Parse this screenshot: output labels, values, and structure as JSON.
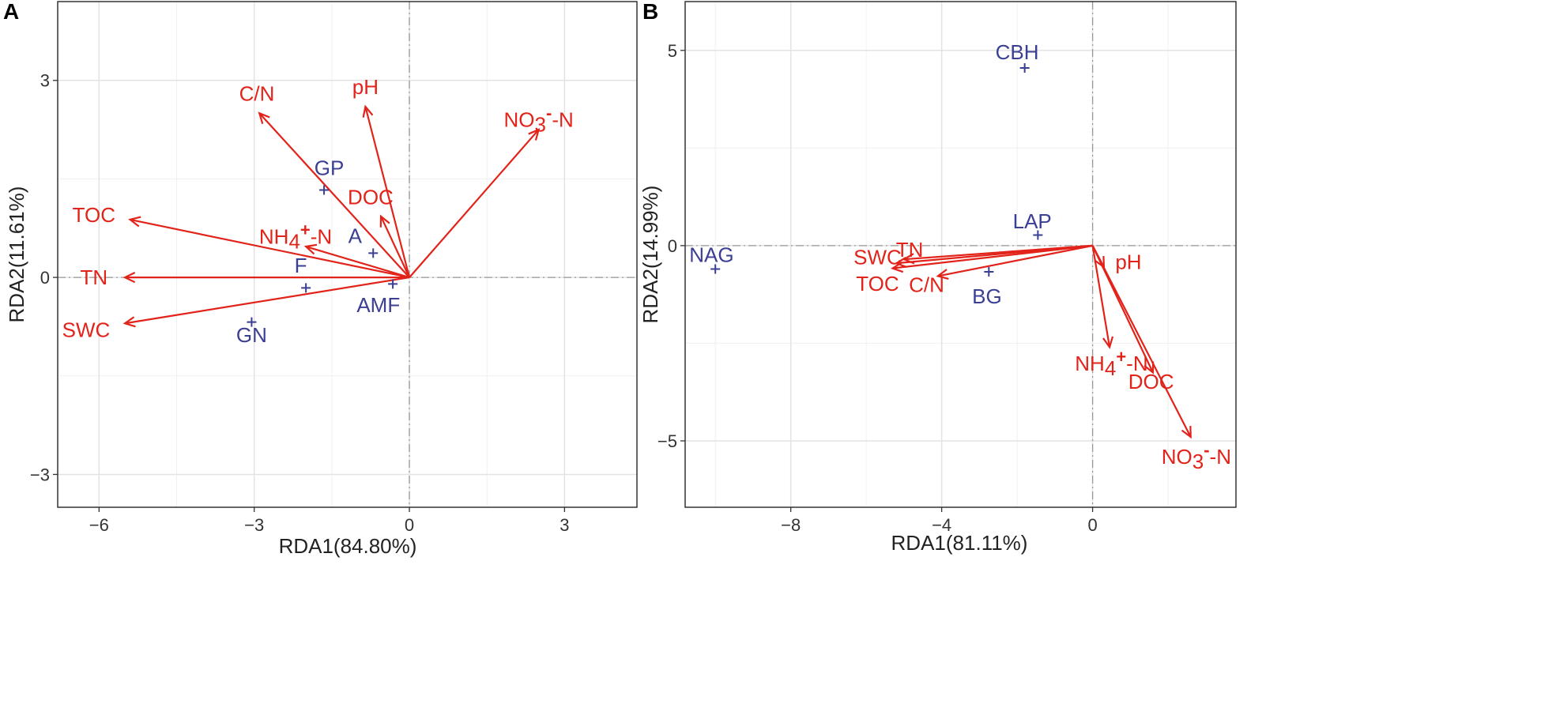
{
  "chart_data": [
    {
      "panel": "A",
      "type": "scatter",
      "subtype": "RDA biplot",
      "xlabel": "RDA1(84.80%)",
      "ylabel": "RDA2(11.61%)",
      "xlim": [
        -6.8,
        4.4
      ],
      "ylim": [
        -3.5,
        4.2
      ],
      "xticks": [
        -6,
        -3,
        0,
        3
      ],
      "yticks": [
        -3,
        0,
        3
      ],
      "tick_labels_x": [
        "−6",
        "−3",
        "0",
        "3"
      ],
      "tick_labels_y": [
        "−3",
        "0",
        "3"
      ],
      "arrow_color": "#e2231a",
      "point_color": "#3b3f93",
      "arrows": [
        {
          "label": "C/N",
          "sup": "",
          "x": -2.9,
          "y": 2.5,
          "lx": -2.95,
          "ly": 2.8
        },
        {
          "label": "pH",
          "sup": "",
          "x": -0.85,
          "y": 2.6,
          "lx": -0.85,
          "ly": 2.9
        },
        {
          "label": "NO3",
          "sup": "-",
          "suffix": "-N",
          "x": 2.5,
          "y": 2.25,
          "lx": 2.5,
          "ly": 2.4
        },
        {
          "label": "TOC",
          "sup": "",
          "x": -5.4,
          "y": 0.88,
          "lx": -6.1,
          "ly": 0.95
        },
        {
          "label": "NH4",
          "sup": "+",
          "suffix": "-N",
          "x": -2.0,
          "y": 0.47,
          "lx": -2.2,
          "ly": 0.62
        },
        {
          "label": "DOC",
          "sup": "",
          "x": -0.55,
          "y": 0.93,
          "lx": -0.75,
          "ly": 1.22
        },
        {
          "label": "TN",
          "sup": "",
          "x": -5.5,
          "y": 0.0,
          "lx": -6.1,
          "ly": 0.0
        },
        {
          "label": "SWC",
          "sup": "",
          "x": -5.5,
          "y": -0.7,
          "lx": -6.25,
          "ly": -0.8
        }
      ],
      "points": [
        {
          "label": "GP",
          "x": -1.65,
          "y": 1.33,
          "lx": -1.55,
          "ly": 1.67
        },
        {
          "label": "A",
          "x": -0.7,
          "y": 0.37,
          "lx": -1.05,
          "ly": 0.63
        },
        {
          "label": "F",
          "x": -2.0,
          "y": -0.16,
          "lx": -2.1,
          "ly": 0.18
        },
        {
          "label": "AMF",
          "x": -0.32,
          "y": -0.1,
          "lx": -0.6,
          "ly": -0.42
        },
        {
          "label": "GN",
          "x": -3.05,
          "y": -0.68,
          "lx": -3.05,
          "ly": -0.88
        }
      ]
    },
    {
      "panel": "B",
      "type": "scatter",
      "subtype": "RDA biplot",
      "xlabel": "RDA1(81.11%)",
      "ylabel": "RDA2(14.99%)",
      "xlim": [
        -10.8,
        3.8
      ],
      "ylim": [
        -6.7,
        6.25
      ],
      "xticks": [
        -8,
        -4,
        0
      ],
      "yticks": [
        -5,
        0,
        5
      ],
      "tick_labels_x": [
        "−8",
        "−4",
        "0"
      ],
      "tick_labels_y": [
        "−5",
        "0",
        "5"
      ],
      "arrow_color": "#e2231a",
      "point_color": "#3b3f93",
      "arrows": [
        {
          "label": "TN",
          "sup": "",
          "x": -5.0,
          "y": -0.35,
          "lx": -4.85,
          "ly": -0.1
        },
        {
          "label": "SWC",
          "sup": "",
          "x": -5.2,
          "y": -0.45,
          "lx": -5.7,
          "ly": -0.3
        },
        {
          "label": "TOC",
          "sup": "",
          "x": -5.3,
          "y": -0.58,
          "lx": -5.7,
          "ly": -0.97
        },
        {
          "label": "C/N",
          "sup": "",
          "x": -4.1,
          "y": -0.78,
          "lx": -4.4,
          "ly": -1.0
        },
        {
          "label": "pH",
          "sup": "",
          "x": 0.3,
          "y": -0.55,
          "lx": 0.95,
          "ly": -0.42
        },
        {
          "label": "NH4",
          "sup": "+",
          "suffix": "-N",
          "x": 0.45,
          "y": -2.6,
          "lx": 0.5,
          "ly": -3.02
        },
        {
          "label": "DOC",
          "sup": "",
          "x": 1.6,
          "y": -3.25,
          "lx": 1.55,
          "ly": -3.48
        },
        {
          "label": "NO3",
          "sup": "-",
          "suffix": "-N",
          "x": 2.6,
          "y": -4.9,
          "lx": 2.75,
          "ly": -5.4
        }
      ],
      "points": [
        {
          "label": "CBH",
          "x": -1.8,
          "y": 4.55,
          "lx": -2.0,
          "ly": 4.95
        },
        {
          "label": "LAP",
          "x": -1.45,
          "y": 0.27,
          "lx": -1.6,
          "ly": 0.62
        },
        {
          "label": "NAG",
          "x": -10.0,
          "y": -0.6,
          "lx": -10.1,
          "ly": -0.24
        },
        {
          "label": "BG",
          "x": -2.75,
          "y": -0.67,
          "lx": -2.8,
          "ly": -1.3
        }
      ]
    }
  ]
}
